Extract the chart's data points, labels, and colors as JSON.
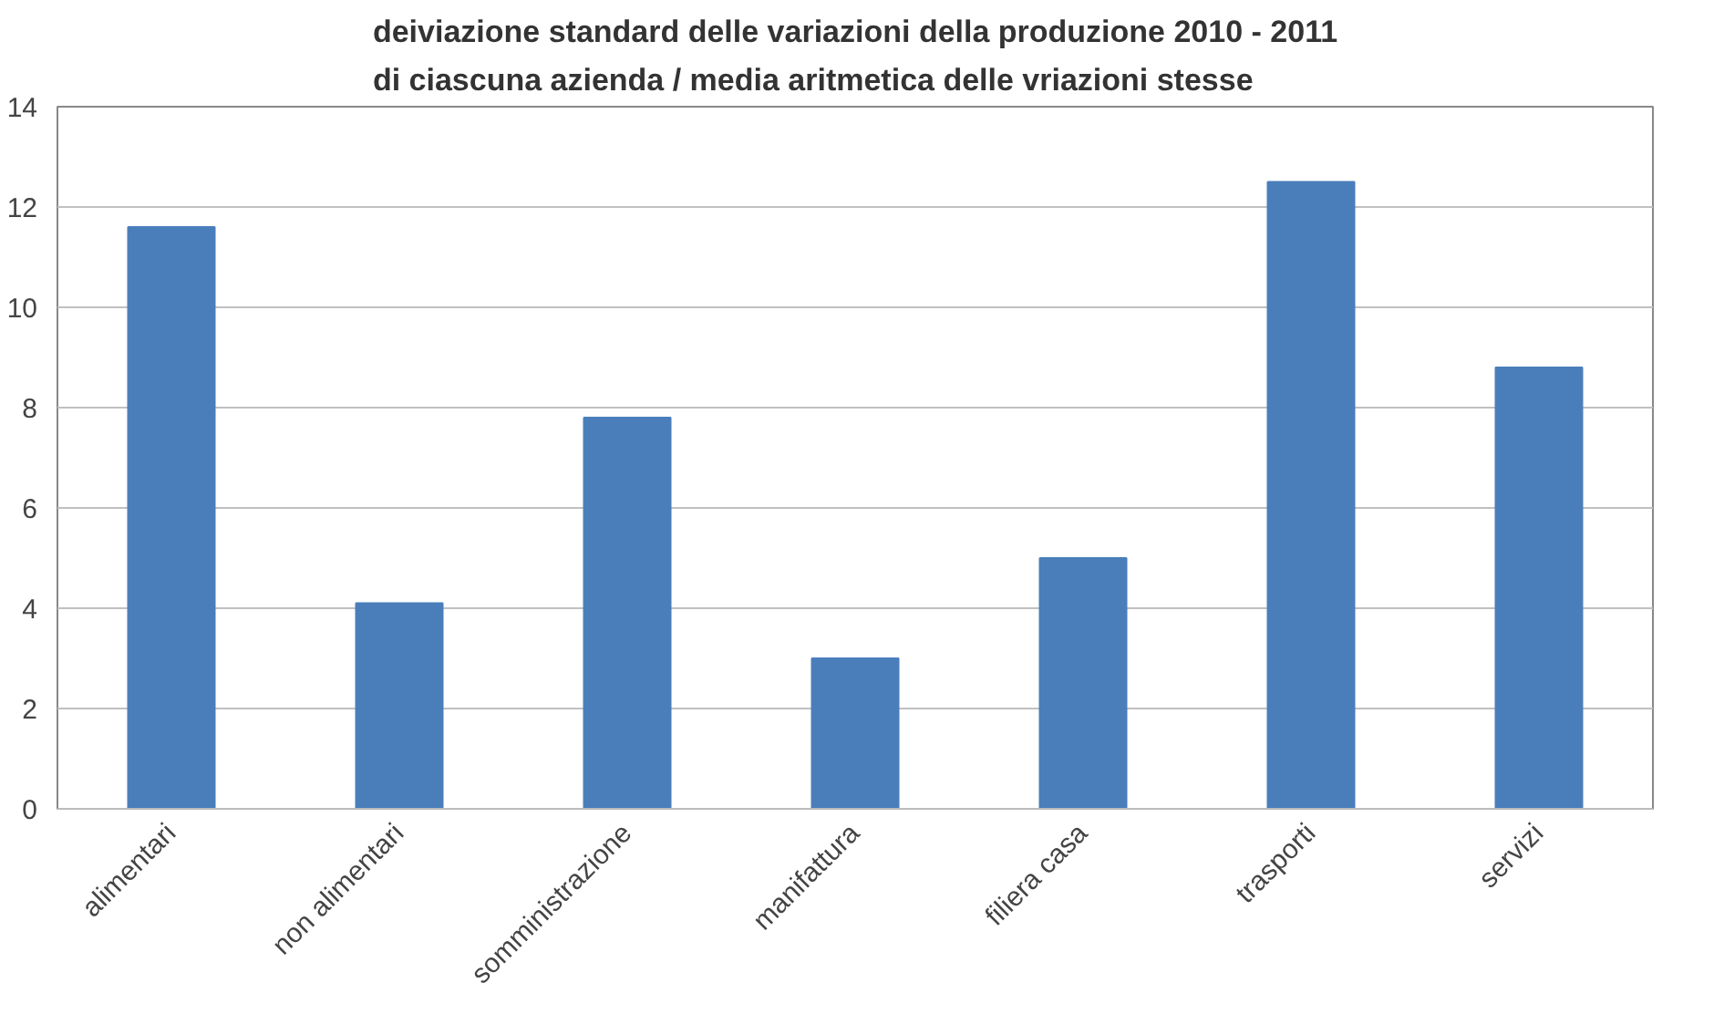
{
  "chart_data": {
    "type": "bar",
    "title": "deiviazione standard delle variazioni della produzione 2010 - 2011\ndi ciascuna azienda / media aritmetica delle vriazioni stesse",
    "categories": [
      "alimentari",
      "non alimentari",
      "somministrazione",
      "manifattura",
      "filiera casa",
      "trasporti",
      "servizi"
    ],
    "values": [
      11.6,
      4.1,
      7.8,
      3.0,
      5.0,
      12.5,
      8.8
    ],
    "color": "#4a7ebb",
    "ylim": [
      0,
      14
    ],
    "yticks": [
      0,
      2,
      4,
      6,
      8,
      10,
      12,
      14
    ],
    "grid": "y"
  }
}
